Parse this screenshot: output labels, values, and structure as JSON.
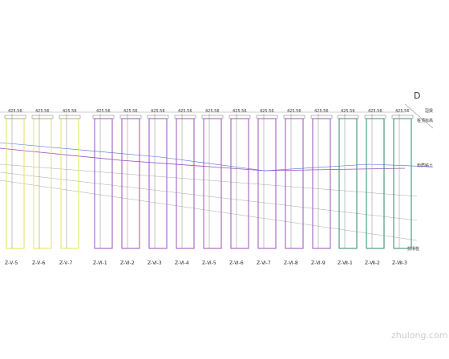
{
  "drawing": {
    "section_mark": "D",
    "groups": [
      {
        "color": "#e6e35a",
        "piles": [
          {
            "label": "Z-Ⅴ-5",
            "elevation": "425.56"
          },
          {
            "label": "Z-Ⅴ-6",
            "elevation": "425.56"
          },
          {
            "label": "Z-Ⅴ-7",
            "elevation": "425.56"
          }
        ]
      },
      {
        "color": "#9b4fc0",
        "piles": [
          {
            "label": "Z-Ⅵ-1",
            "elevation": "425.56"
          },
          {
            "label": "Z-Ⅵ-2",
            "elevation": "425.56"
          },
          {
            "label": "Z-Ⅵ-3",
            "elevation": "425.56"
          },
          {
            "label": "Z-Ⅵ-4",
            "elevation": "425.56"
          },
          {
            "label": "Z-Ⅵ-5",
            "elevation": "425.56"
          },
          {
            "label": "Z-Ⅵ-6",
            "elevation": "425.56"
          },
          {
            "label": "Z-Ⅵ-7",
            "elevation": "425.56"
          },
          {
            "label": "Z-Ⅵ-8",
            "elevation": "425.56"
          },
          {
            "label": "Z-Ⅵ-9",
            "elevation": "425.56"
          }
        ]
      },
      {
        "color": "#2e8a6a",
        "piles": [
          {
            "label": "Z-Ⅶ-1",
            "elevation": "425.56"
          },
          {
            "label": "Z-Ⅶ-2",
            "elevation": "425.56"
          },
          {
            "label": "Z-Ⅶ-3",
            "elevation": "425.56"
          }
        ]
      }
    ],
    "notes": [
      "冠梁",
      "桩顶标高",
      "粉质粘土",
      "抗滑桩"
    ],
    "watermark": "zhulong.com"
  }
}
